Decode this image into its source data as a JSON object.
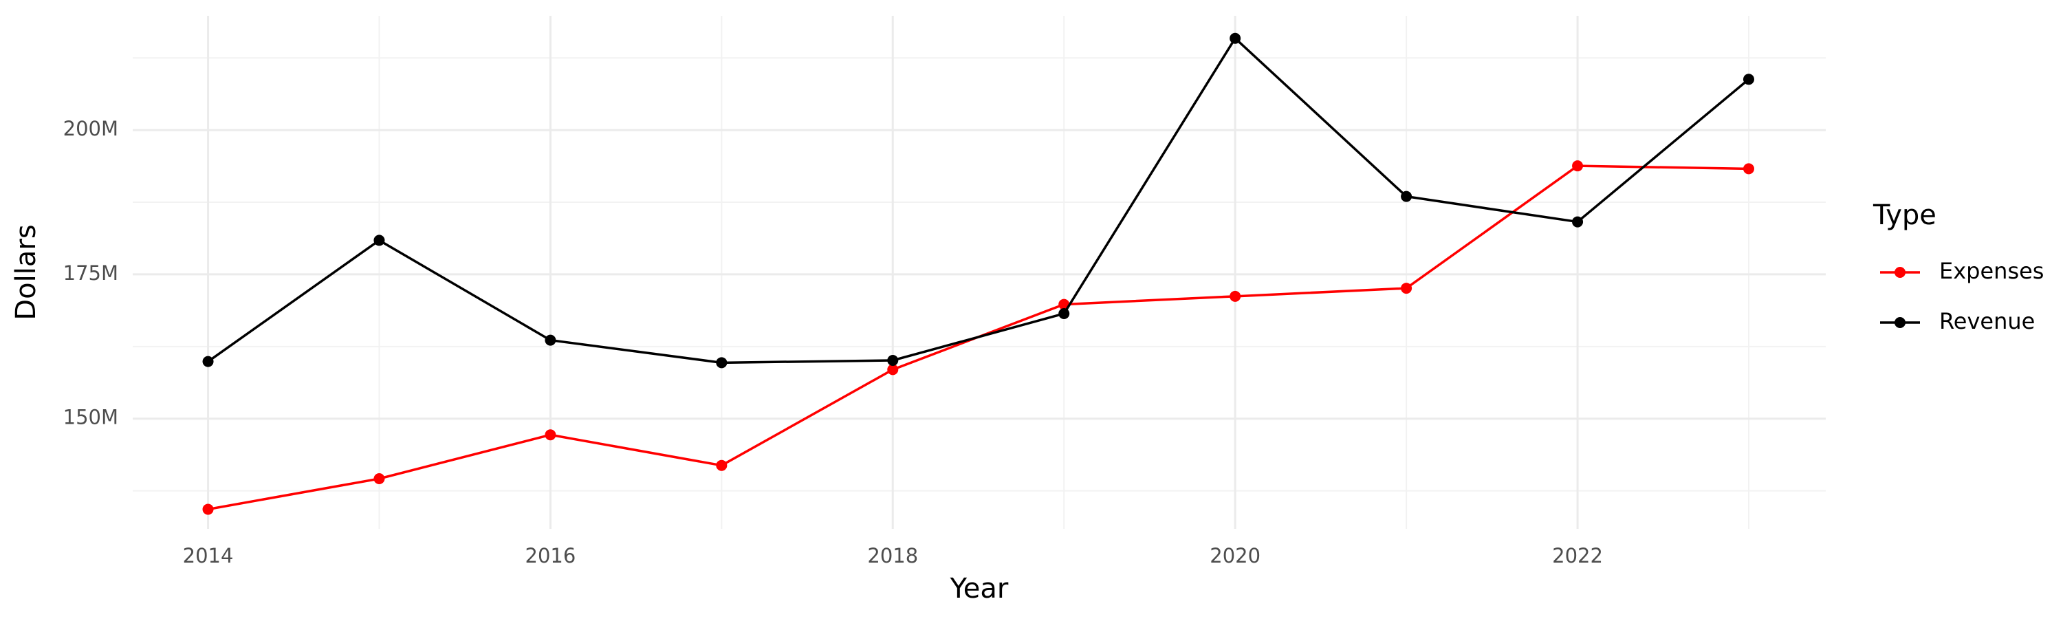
{
  "chart_data": {
    "type": "line",
    "x_label": "Year",
    "y_label": "Dollars",
    "legend_title": "Type",
    "x": [
      2014,
      2015,
      2016,
      2017,
      2018,
      2019,
      2020,
      2021,
      2022,
      2023
    ],
    "series": [
      {
        "name": "Expenses",
        "color": "#ff0000",
        "values": [
          134300000,
          139600000,
          147200000,
          141900000,
          158500000,
          169800000,
          171200000,
          172600000,
          193800000,
          193300000
        ]
      },
      {
        "name": "Revenue",
        "color": "#000000",
        "values": [
          159900000,
          180900000,
          163600000,
          159700000,
          160100000,
          168200000,
          215900000,
          188500000,
          184100000,
          208800000
        ]
      }
    ],
    "xlim": [
      2013.56,
      2023.45
    ],
    "ylim": [
      130900000,
      219800000
    ],
    "xticks": [
      2014,
      2016,
      2018,
      2020,
      2022
    ],
    "xminorticks": [
      2015,
      2017,
      2019,
      2021,
      2023
    ],
    "yticks": [
      {
        "value": 150000000,
        "label": "150M"
      },
      {
        "value": 175000000,
        "label": "175M"
      },
      {
        "value": 200000000,
        "label": "200M"
      }
    ],
    "yminorticks": [
      137500000,
      162500000,
      187500000,
      212500000
    ],
    "grid": true,
    "legend": "right"
  }
}
